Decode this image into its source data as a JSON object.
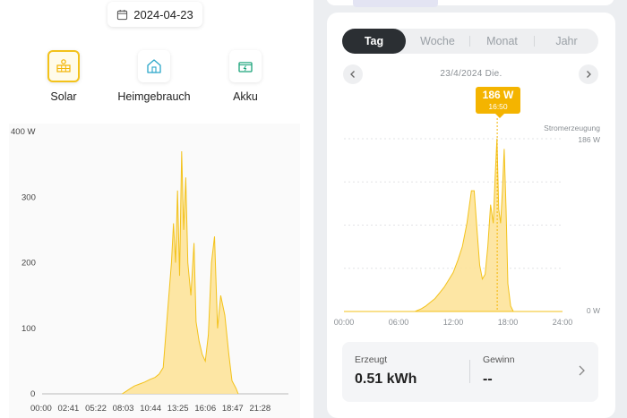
{
  "left": {
    "date": "2024-04-23",
    "tabs": [
      {
        "label": "Solar",
        "icon": "solar-panel-icon",
        "active": true
      },
      {
        "label": "Heimgebrauch",
        "icon": "home-icon",
        "active": false
      },
      {
        "label": "Akku",
        "icon": "battery-icon",
        "active": false
      }
    ]
  },
  "right": {
    "periods": [
      "Tag",
      "Woche",
      "Monat",
      "Jahr"
    ],
    "active_period": "Tag",
    "date_label": "23/4/2024 Die.",
    "tooltip": {
      "value": "186 W",
      "time": "16:50"
    },
    "series_name": "Stromerzeugung",
    "y_max_label": "186 W",
    "y_min_label": "0 W",
    "summary": {
      "generated_title": "Erzeugt",
      "generated_value": "0.51 kWh",
      "profit_title": "Gewinn",
      "profit_value": "--"
    }
  },
  "colors": {
    "accent": "#f4b400",
    "area_fill": "#fde39a",
    "line": "#f3c21a"
  },
  "chart_data": [
    {
      "type": "area",
      "ylabel_top": "400 W",
      "ylim": [
        0,
        400
      ],
      "yticks": [
        "0",
        "100",
        "200",
        "300",
        "400 W"
      ],
      "x_tick_labels": [
        "00:00",
        "02:41",
        "05:22",
        "08:03",
        "10:44",
        "13:25",
        "16:06",
        "18:47",
        "21:28"
      ],
      "x_hours": [
        7.8,
        8.2,
        8.6,
        9.0,
        9.5,
        10.0,
        10.5,
        11.0,
        11.4,
        11.8,
        12.0,
        12.2,
        12.4,
        12.6,
        12.8,
        13.0,
        13.2,
        13.4,
        13.6,
        13.8,
        14.0,
        14.2,
        14.5,
        14.8,
        15.0,
        15.3,
        15.6,
        15.9,
        16.2,
        16.5,
        16.8,
        17.1,
        17.4,
        17.8,
        18.2,
        18.5,
        18.9,
        19.1
      ],
      "values": [
        0,
        4,
        8,
        12,
        15,
        18,
        22,
        25,
        30,
        40,
        80,
        120,
        160,
        200,
        260,
        200,
        310,
        180,
        370,
        250,
        330,
        200,
        150,
        230,
        110,
        80,
        60,
        50,
        90,
        200,
        240,
        100,
        150,
        120,
        60,
        20,
        8,
        0
      ]
    },
    {
      "type": "area",
      "series": [
        {
          "name": "Stromerzeugung"
        }
      ],
      "ylim": [
        0,
        186
      ],
      "x_tick_labels": [
        "00:00",
        "06:00",
        "12:00",
        "18:00",
        "24:00"
      ],
      "x_hours": [
        7.8,
        8.5,
        9.0,
        9.5,
        10.0,
        10.5,
        11.0,
        11.5,
        12.0,
        12.5,
        13.0,
        13.5,
        14.0,
        14.3,
        14.6,
        14.9,
        15.2,
        15.5,
        15.8,
        16.1,
        16.4,
        16.6,
        16.8,
        17.0,
        17.2,
        17.4,
        17.6,
        17.8,
        18.0,
        18.3,
        18.6
      ],
      "values": [
        0,
        3,
        6,
        10,
        14,
        20,
        26,
        34,
        42,
        55,
        70,
        95,
        130,
        130,
        90,
        50,
        35,
        40,
        70,
        115,
        95,
        145,
        186,
        110,
        95,
        130,
        175,
        110,
        30,
        6,
        0
      ],
      "highlight": {
        "x_hour": 16.83,
        "value": 186,
        "label": "186 W",
        "time": "16:50"
      }
    }
  ]
}
